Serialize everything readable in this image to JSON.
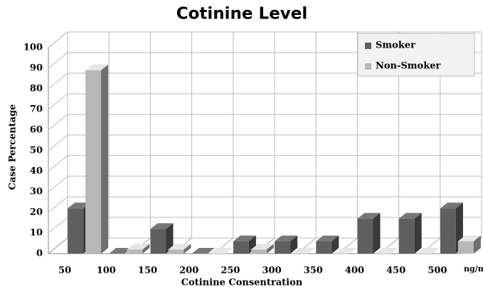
{
  "chart_data": {
    "type": "bar3d",
    "title": "Cotinine Level",
    "x_label": "Cotinine Consentration",
    "y_label": "Case Percentage",
    "annotation": "ng/mL",
    "categories": [
      "50",
      "100",
      "150",
      "200",
      "250",
      "300",
      "350",
      "400",
      "450",
      "500"
    ],
    "series": [
      {
        "name": "Smoker",
        "color": "#5f5f5f",
        "values": [
          22,
          0,
          12,
          0,
          6,
          6,
          6,
          17,
          17,
          22
        ]
      },
      {
        "name": "Non-Smoker",
        "color": "#b8b8b8",
        "values": [
          89,
          2,
          2,
          0,
          2,
          0,
          0,
          0,
          0,
          6
        ]
      }
    ],
    "ylim": [
      0,
      100
    ],
    "yticks": [
      0,
      10,
      20,
      30,
      40,
      50,
      60,
      70,
      80,
      90,
      100
    ],
    "grid": true,
    "legend": "top-right"
  }
}
